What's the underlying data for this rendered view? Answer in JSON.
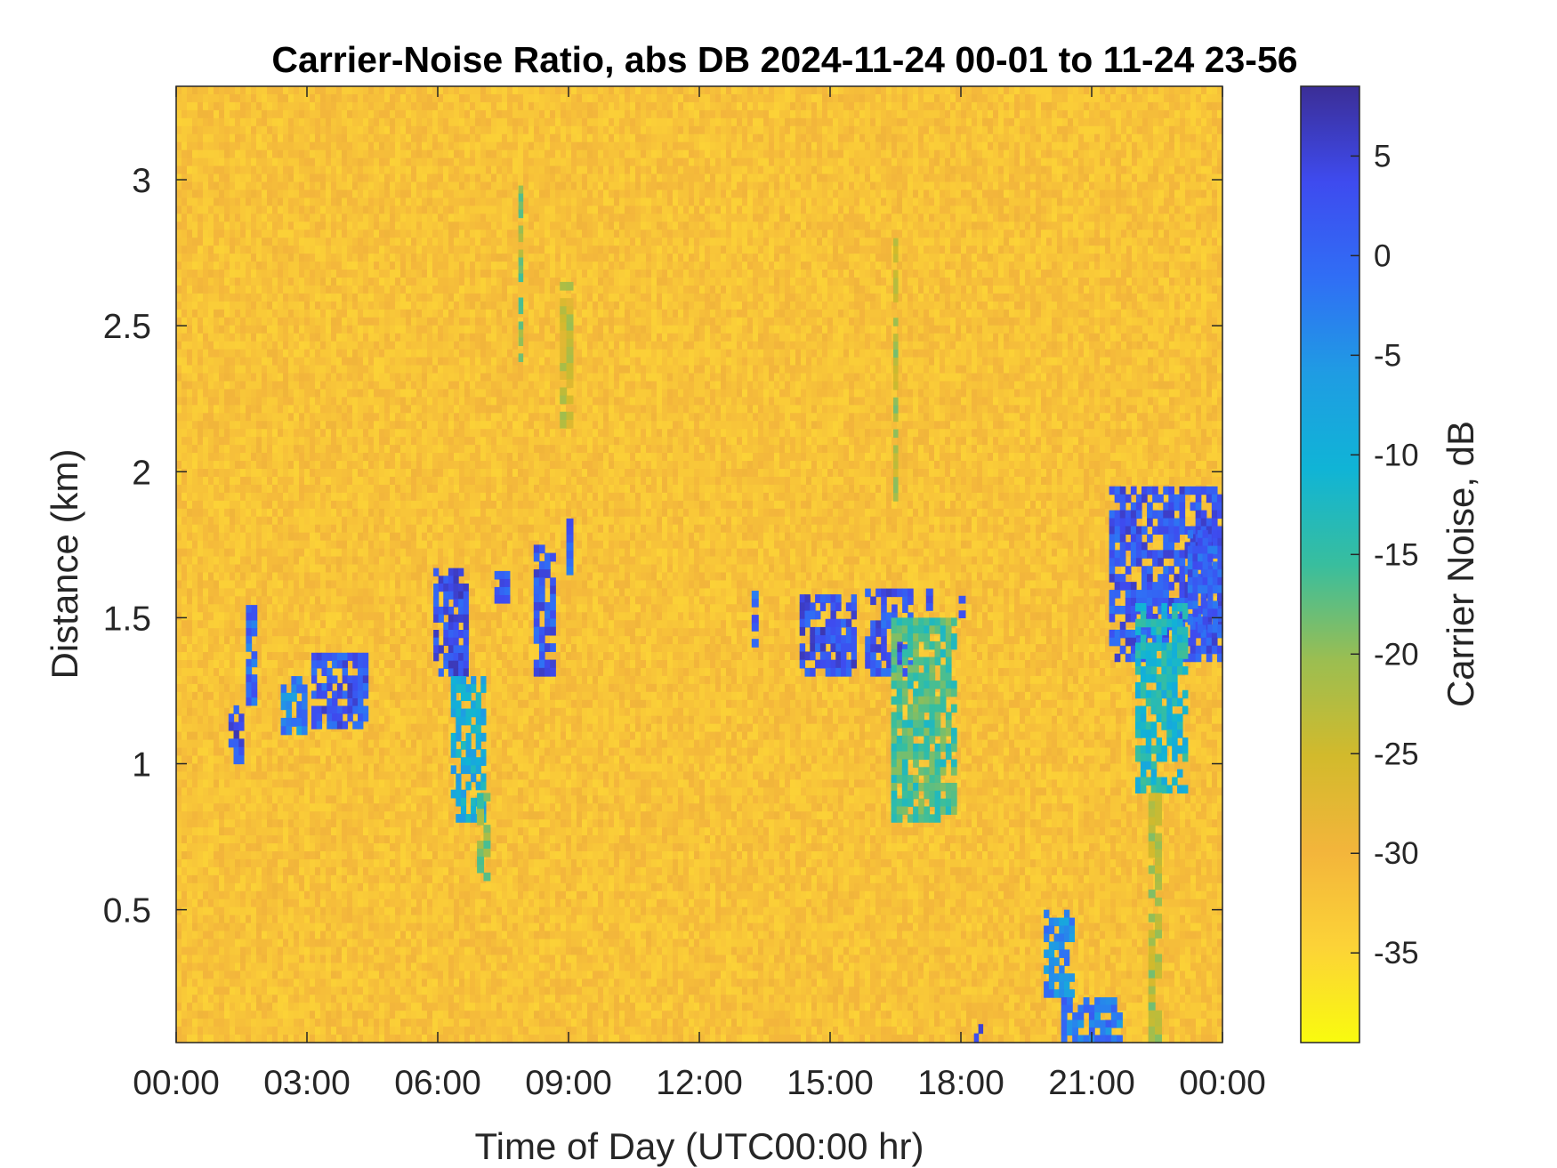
{
  "chart_data": {
    "type": "heatmap",
    "title": "Carrier-Noise Ratio, abs DB 2024-11-24 00-01 to 11-24 23-56",
    "xlabel": "Time of Day (UTC00:00 hr)",
    "ylabel": "Distance (km)",
    "colorbar_label": "Carrier Noise, dB",
    "colormap": "parula",
    "x_unit": "hours",
    "xlim": [
      0,
      24
    ],
    "ylim": [
      0.045,
      3.32
    ],
    "clim": [
      -39.5,
      8.5
    ],
    "x_ticks": [
      0,
      3,
      6,
      9,
      12,
      15,
      18,
      21,
      24
    ],
    "x_tick_labels": [
      "00:00",
      "03:00",
      "06:00",
      "09:00",
      "12:00",
      "15:00",
      "18:00",
      "21:00",
      "00:00"
    ],
    "y_ticks": [
      0.5,
      1,
      1.5,
      2,
      2.5,
      3
    ],
    "y_tick_labels": [
      "0.5",
      "1",
      "1.5",
      "2",
      "2.5",
      "3"
    ],
    "colorbar_ticks": [
      5,
      0,
      -5,
      -10,
      -15,
      -20,
      -25,
      -30,
      -35
    ],
    "colorbar_tick_labels": [
      "5",
      "0",
      "-5",
      "-10",
      "-15",
      "-20",
      "-25",
      "-30",
      "-35"
    ],
    "background_level_db": -32,
    "features": [
      {
        "t0": 1.2,
        "t1": 1.55,
        "d0": 1.0,
        "d1": 1.2,
        "value": 3
      },
      {
        "t0": 1.6,
        "t1": 1.85,
        "d0": 1.2,
        "d1": 1.57,
        "value": 0
      },
      {
        "t0": 2.4,
        "t1": 3.0,
        "d0": 1.1,
        "d1": 1.3,
        "value": -3
      },
      {
        "t0": 3.1,
        "t1": 4.4,
        "d0": 1.12,
        "d1": 1.38,
        "value": 2
      },
      {
        "t0": 5.9,
        "t1": 6.7,
        "d0": 1.3,
        "d1": 1.67,
        "value": 3
      },
      {
        "t0": 6.3,
        "t1": 7.1,
        "d0": 0.8,
        "d1": 1.3,
        "value": -9
      },
      {
        "t0": 6.9,
        "t1": 7.2,
        "d0": 0.6,
        "d1": 0.9,
        "value": -18
      },
      {
        "t0": 7.3,
        "t1": 7.65,
        "d0": 1.55,
        "d1": 1.66,
        "value": 1
      },
      {
        "t0": 8.2,
        "t1": 8.7,
        "d0": 1.3,
        "d1": 1.75,
        "value": 2
      },
      {
        "t0": 8.95,
        "t1": 9.1,
        "d0": 1.62,
        "d1": 1.84,
        "value": 0
      },
      {
        "t0": 7.85,
        "t1": 7.95,
        "d0": 2.35,
        "d1": 2.98,
        "value": -20
      },
      {
        "t0": 8.8,
        "t1": 9.1,
        "d0": 2.15,
        "d1": 2.65,
        "value": -24
      },
      {
        "t0": 13.2,
        "t1": 13.35,
        "d0": 1.4,
        "d1": 1.62,
        "value": 0
      },
      {
        "t0": 14.3,
        "t1": 15.6,
        "d0": 1.3,
        "d1": 1.58,
        "value": 3
      },
      {
        "t0": 15.8,
        "t1": 16.9,
        "d0": 1.3,
        "d1": 1.6,
        "value": 2
      },
      {
        "t0": 16.4,
        "t1": 17.9,
        "d0": 0.8,
        "d1": 1.5,
        "value": -16
      },
      {
        "t0": 16.45,
        "t1": 16.55,
        "d0": 1.9,
        "d1": 2.8,
        "value": -22
      },
      {
        "t0": 17.2,
        "t1": 17.35,
        "d0": 1.5,
        "d1": 1.6,
        "value": 1
      },
      {
        "t0": 17.95,
        "t1": 18.1,
        "d0": 1.5,
        "d1": 1.6,
        "value": 0
      },
      {
        "t0": 18.3,
        "t1": 18.5,
        "d0": 0.045,
        "d1": 0.14,
        "value": 3
      },
      {
        "t0": 19.9,
        "t1": 20.6,
        "d0": 0.2,
        "d1": 0.5,
        "value": -4
      },
      {
        "t0": 20.3,
        "t1": 21.7,
        "d0": 0.045,
        "d1": 0.2,
        "value": -2
      },
      {
        "t0": 21.4,
        "t1": 24.0,
        "d0": 1.35,
        "d1": 1.95,
        "value": 2
      },
      {
        "t0": 22.0,
        "t1": 23.2,
        "d0": 0.9,
        "d1": 1.55,
        "value": -12
      },
      {
        "t0": 22.3,
        "t1": 22.6,
        "d0": 0.045,
        "d1": 0.9,
        "value": -22
      },
      {
        "t0": 23.2,
        "t1": 24.0,
        "d0": 1.45,
        "d1": 1.8,
        "value": 1
      }
    ]
  }
}
